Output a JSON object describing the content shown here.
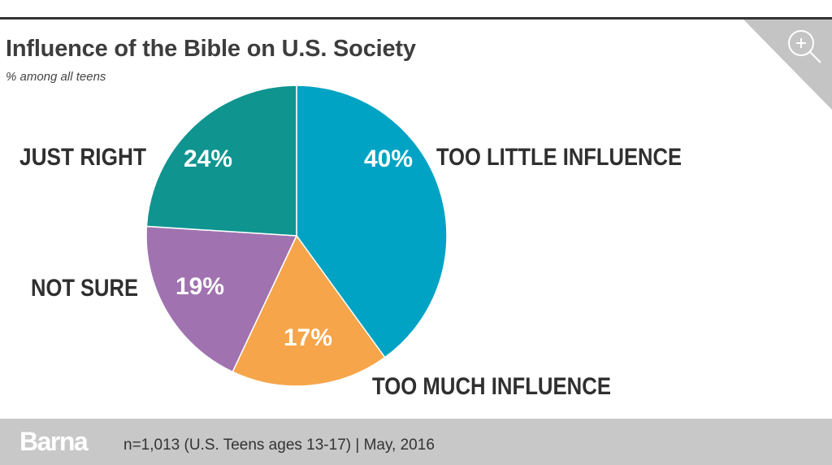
{
  "chart_data": {
    "type": "pie",
    "title": "Influence of the Bible on U.S. Society",
    "subtitle": "% among all teens",
    "slices": [
      {
        "label": "TOO LITTLE INFLUENCE",
        "value": 40,
        "display": "40%",
        "color": "#00a3c4"
      },
      {
        "label": "TOO MUCH INFLUENCE",
        "value": 17,
        "display": "17%",
        "color": "#f6a54a"
      },
      {
        "label": "NOT SURE",
        "value": 19,
        "display": "19%",
        "color": "#a073b0"
      },
      {
        "label": "JUST RIGHT",
        "value": 24,
        "display": "24%",
        "color": "#0f9490"
      }
    ],
    "start": "top",
    "direction": "clockwise"
  },
  "footer": {
    "logo": "Barna",
    "note": "n=1,013 (U.S. Teens ages 13-17) | May, 2016"
  },
  "icons": {
    "zoom": "zoom-in-icon"
  }
}
